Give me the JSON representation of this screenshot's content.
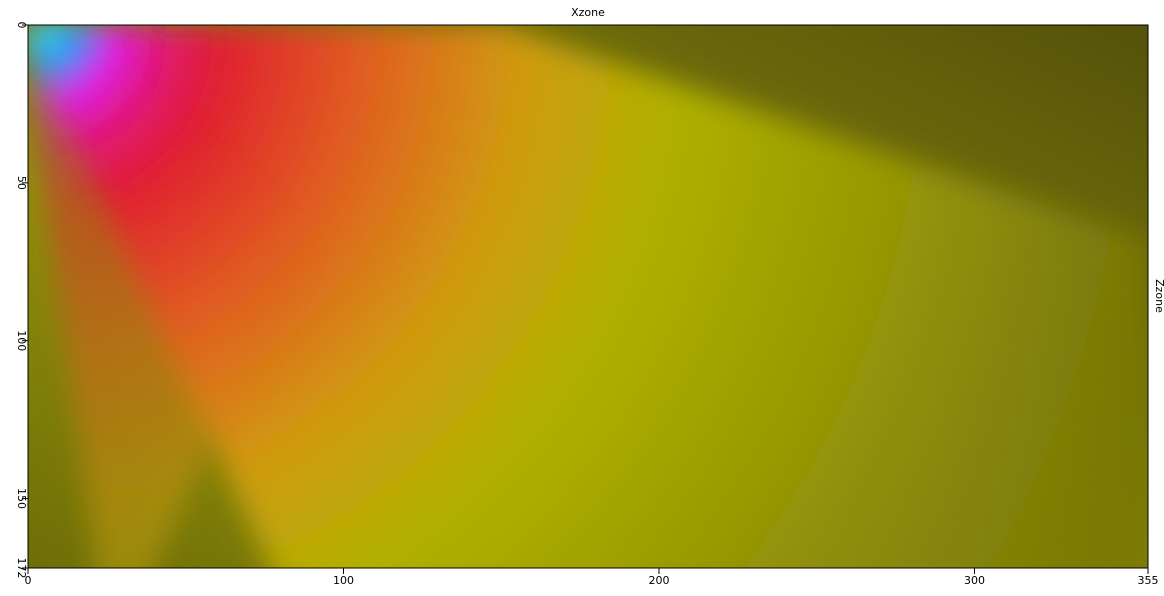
{
  "chart_data": {
    "type": "heatmap",
    "x_label": "Xzone",
    "y_label": "Zzone",
    "xlim": [
      0,
      355
    ],
    "xticks": [
      0,
      100,
      200,
      300,
      355
    ],
    "ylim": [
      0,
      172
    ],
    "yticks": [
      0,
      50,
      100,
      150,
      172
    ]
  }
}
